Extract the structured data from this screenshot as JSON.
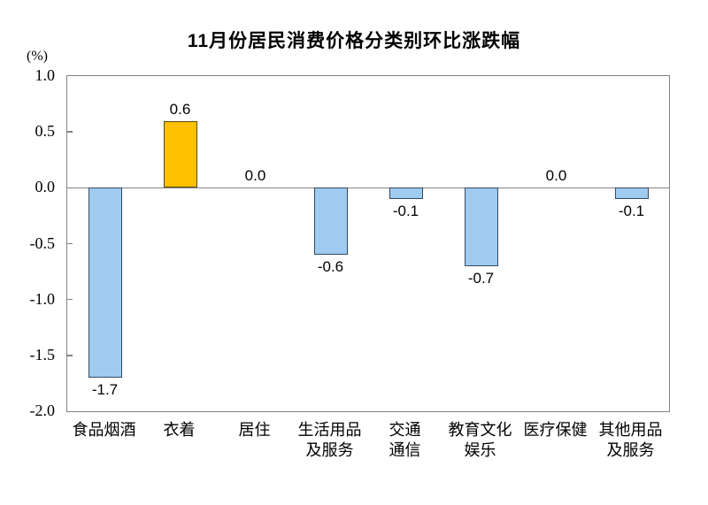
{
  "title": "11月份居民消费价格分类别环比涨跌幅",
  "colors": {
    "positive_bar_fill": "#FFC000",
    "positive_bar_border": "#594a14",
    "negative_bar_fill": "#9FCBF1",
    "negative_bar_border": "#35485e",
    "axis_line": "#848484",
    "text": "#000000"
  },
  "chart_data": {
    "type": "bar",
    "title": "11月份居民消费价格分类别环比涨跌幅",
    "xlabel": "",
    "ylabel": "(%)",
    "categories": [
      "食品烟酒",
      "衣着",
      "居住",
      "生活用品及服务",
      "交通通信",
      "教育文化娱乐",
      "医疗保健",
      "其他用品及服务"
    ],
    "category_lines": [
      [
        "食品烟酒"
      ],
      [
        "衣着"
      ],
      [
        "居住"
      ],
      [
        "生活用品",
        "及服务"
      ],
      [
        "交通",
        "通信"
      ],
      [
        "教育文化",
        "娱乐"
      ],
      [
        "医疗保健"
      ],
      [
        "其他用品",
        "及服务"
      ]
    ],
    "values": [
      -1.7,
      0.6,
      0.0,
      -0.6,
      -0.1,
      -0.7,
      0.0,
      -0.1
    ],
    "value_labels": [
      "-1.7",
      "0.6",
      "0.0",
      "-0.6",
      "-0.1",
      "-0.7",
      "0.0",
      "-0.1"
    ],
    "ylim": [
      -2.0,
      1.0
    ],
    "yticks": [
      1.0,
      0.5,
      0.0,
      -0.5,
      -1.0,
      -1.5,
      -2.0
    ],
    "ytick_labels": [
      "1.0",
      "0.5",
      "0.0",
      "-0.5",
      "-1.0",
      "-1.5",
      "-2.0"
    ],
    "grid": false,
    "legend": "none"
  }
}
